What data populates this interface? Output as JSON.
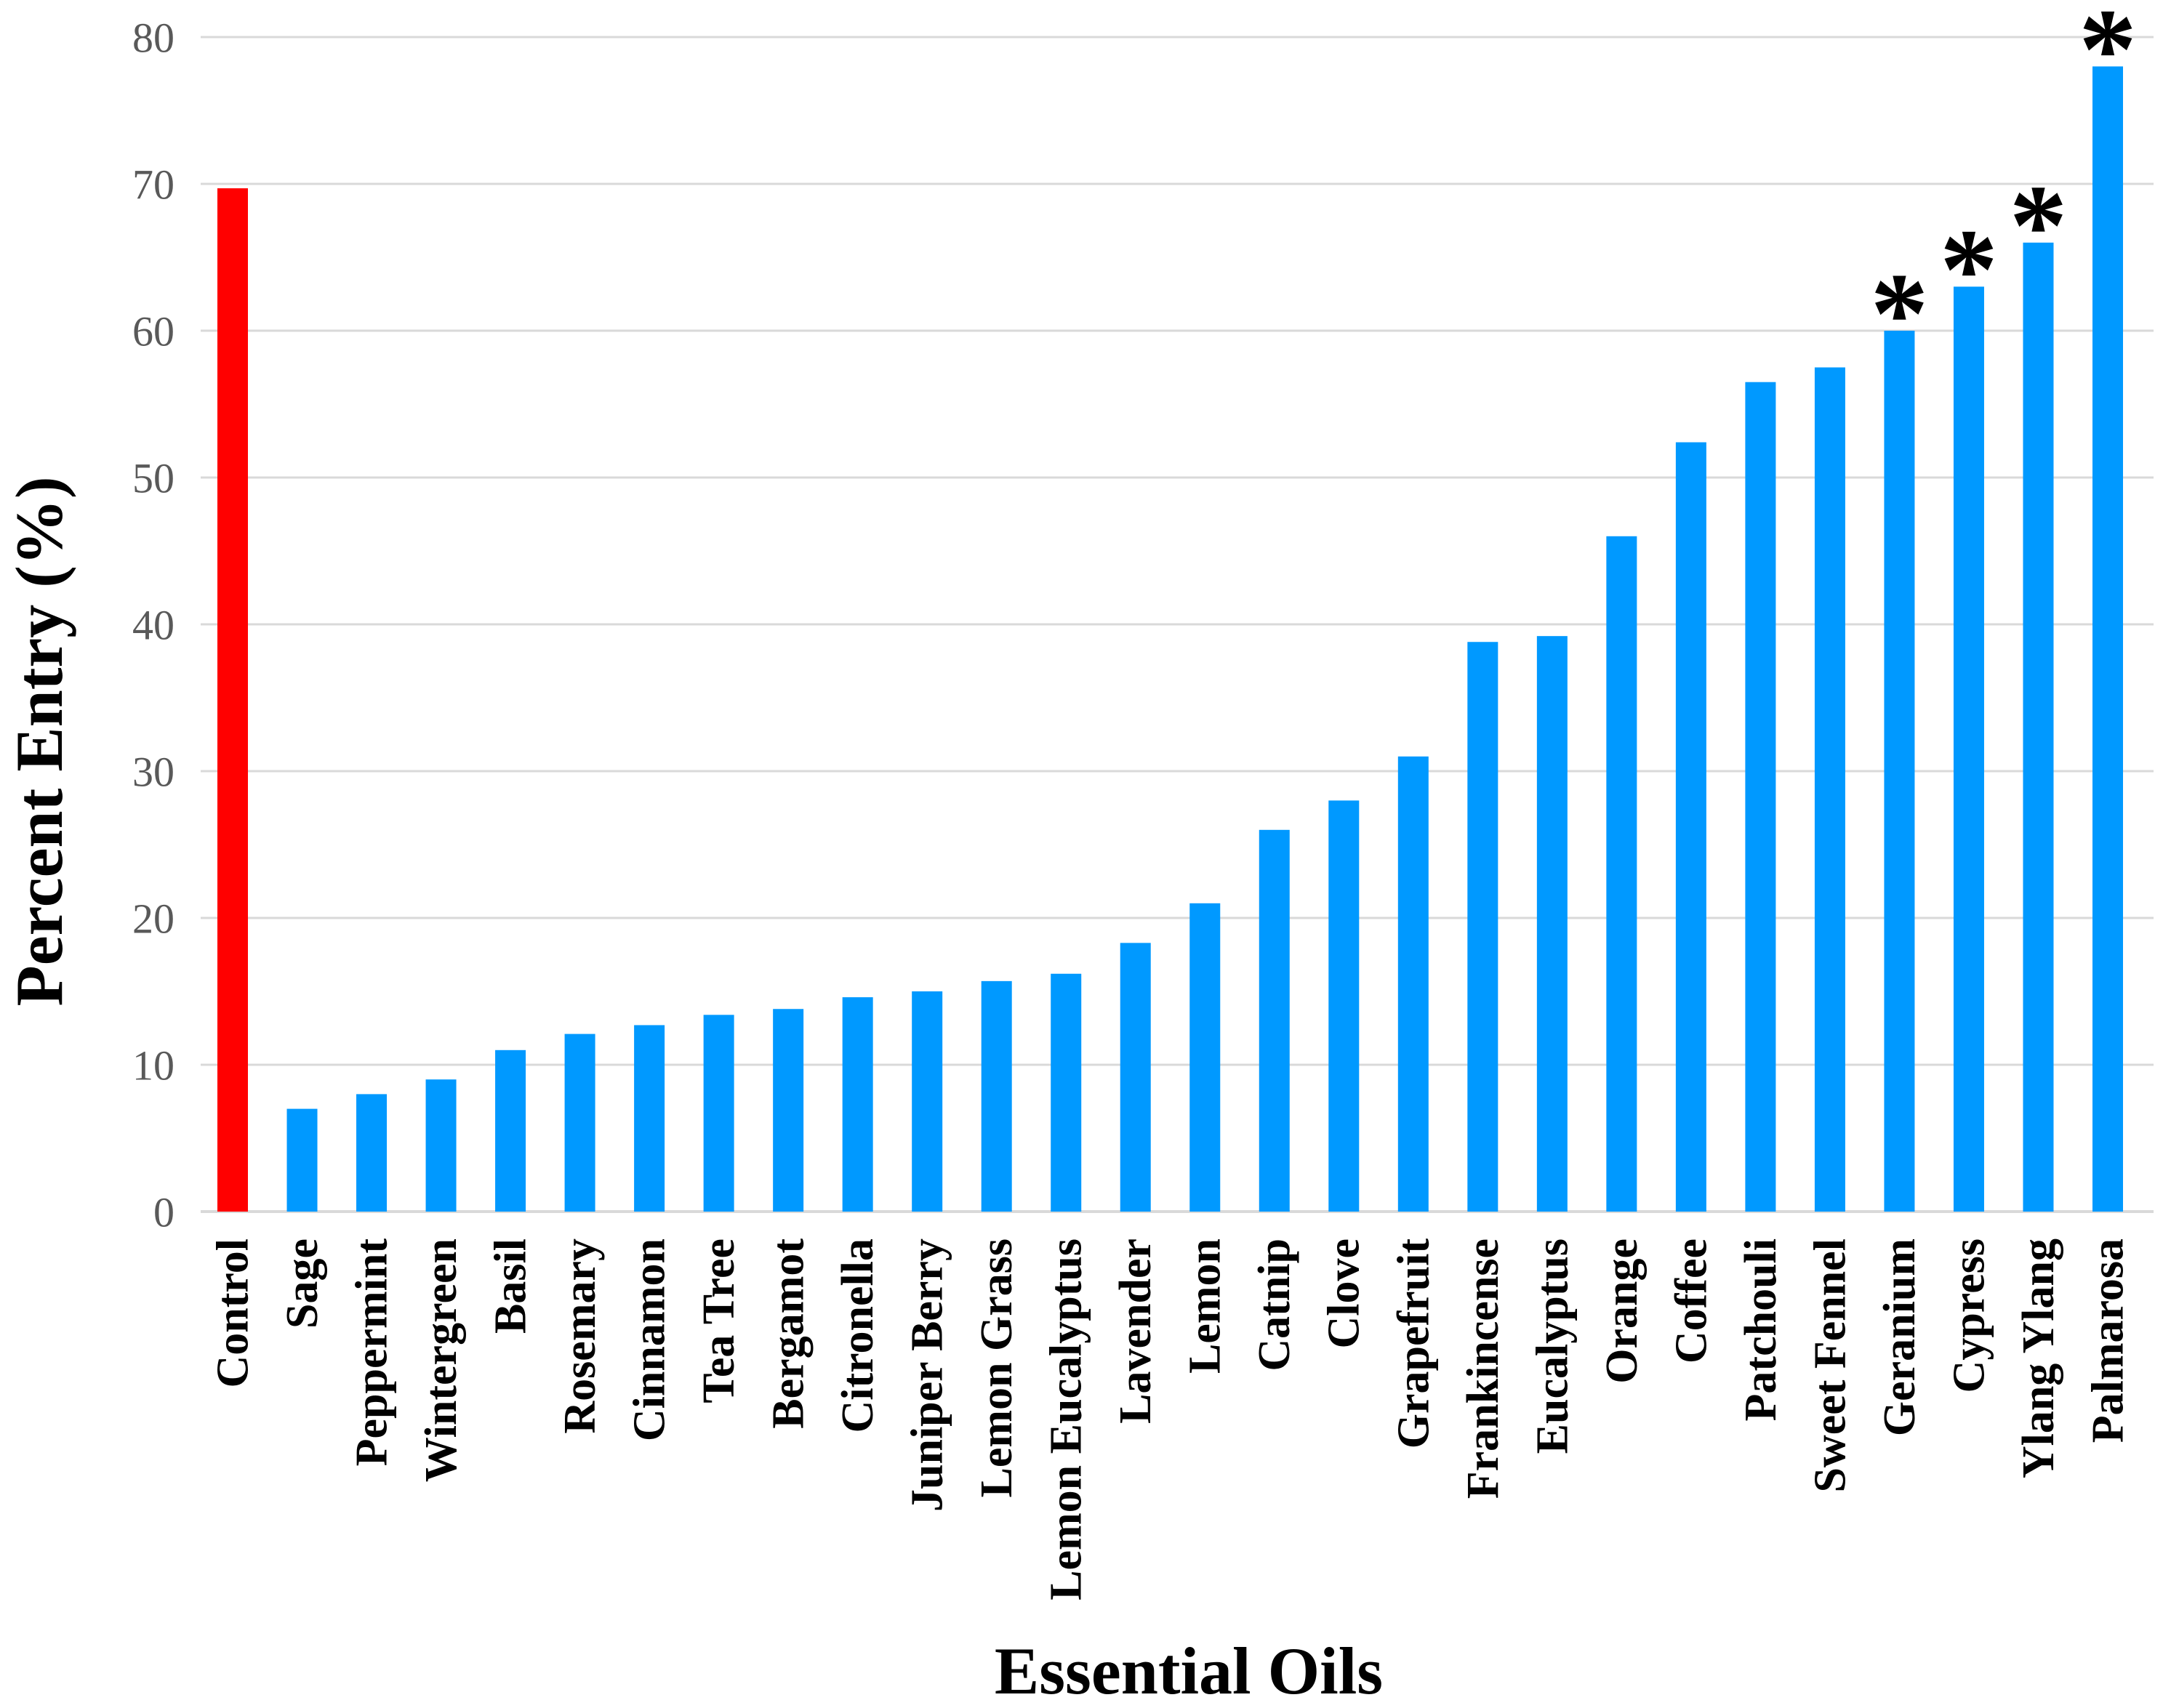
{
  "chart_data": {
    "type": "bar",
    "title": "",
    "xlabel": "Essential Oils",
    "ylabel": "Percent Entry (%)",
    "categories": [
      "Control",
      "Sage",
      "Peppermint",
      "Wintergreen",
      "Basil",
      "Rosemary",
      "Cinnamon",
      "Tea Tree",
      "Bergamot",
      "Citronella",
      "Juniper Berry",
      "Lemon Grass",
      "Lemon Eucalyptus",
      "Lavender",
      "Lemon",
      "Catnip",
      "Clove",
      "Grapefruit",
      "Frankincense",
      "Eucalyptus",
      "Orange",
      "Coffee",
      "Patchouli",
      "Sweet Fennel",
      "Geranium",
      "Cypress",
      "Ylang Ylang",
      "Palmarosa"
    ],
    "values": [
      69.7,
      7,
      8,
      9,
      11,
      12.1,
      12.7,
      13.4,
      13.8,
      14.6,
      15,
      15.7,
      16.2,
      18.3,
      21,
      26,
      28,
      31,
      38.8,
      39.2,
      46,
      52.4,
      56.5,
      57.5,
      60,
      63,
      66,
      78
    ],
    "significant": [
      false,
      false,
      false,
      false,
      false,
      false,
      false,
      false,
      false,
      false,
      false,
      false,
      false,
      false,
      false,
      false,
      false,
      false,
      false,
      false,
      false,
      false,
      false,
      false,
      true,
      true,
      true,
      true
    ],
    "significance_marker": "*",
    "bar_color": "#0099FF",
    "control_color": "#FF0000",
    "gridline_color": "#D9D9D9",
    "tick_label_color": "#595959",
    "axis_title_color": "#000000",
    "category_label_color": "#000000",
    "ylim": [
      0,
      80
    ],
    "ytick_step": 10,
    "yticks": [
      "0",
      "10",
      "20",
      "30",
      "40",
      "50",
      "60",
      "70",
      "80"
    ],
    "grid": true,
    "legend": "none"
  }
}
